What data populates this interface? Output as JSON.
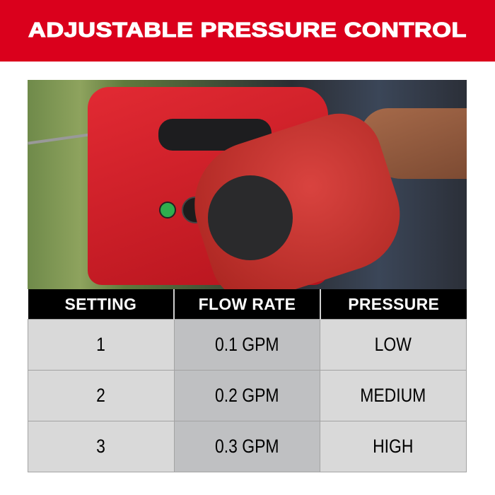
{
  "banner": {
    "title": "ADJUSTABLE PRESSURE CONTROL",
    "color": "#DA001C"
  },
  "photo": {
    "subject": "sprayer-with-gloved-hand"
  },
  "table": {
    "headers": [
      "SETTING",
      "FLOW RATE",
      "PRESSURE"
    ],
    "rows": [
      [
        "1",
        "0.1 GPM",
        "LOW"
      ],
      [
        "2",
        "0.2 GPM",
        "MEDIUM"
      ],
      [
        "3",
        "0.3 GPM",
        "HIGH"
      ]
    ]
  }
}
